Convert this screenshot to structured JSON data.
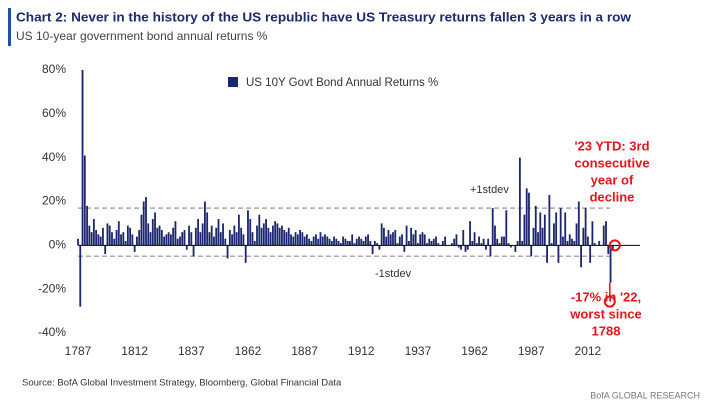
{
  "chart_data": {
    "type": "bar",
    "title": "Chart 2: Never in the history of the US republic have US Treasury returns fallen 3 years in a row",
    "subtitle": "US 10-year government bond annual returns %",
    "series": [
      {
        "name": "US 10Y Govt Bond Annual Returns %",
        "color": "#1c2670"
      }
    ],
    "x": [
      1787,
      1788,
      1789,
      1790,
      1791,
      1792,
      1793,
      1794,
      1795,
      1796,
      1797,
      1798,
      1799,
      1800,
      1801,
      1802,
      1803,
      1804,
      1805,
      1806,
      1807,
      1808,
      1809,
      1810,
      1811,
      1812,
      1813,
      1814,
      1815,
      1816,
      1817,
      1818,
      1819,
      1820,
      1821,
      1822,
      1823,
      1824,
      1825,
      1826,
      1827,
      1828,
      1829,
      1830,
      1831,
      1832,
      1833,
      1834,
      1835,
      1836,
      1837,
      1838,
      1839,
      1840,
      1841,
      1842,
      1843,
      1844,
      1845,
      1846,
      1847,
      1848,
      1849,
      1850,
      1851,
      1852,
      1853,
      1854,
      1855,
      1856,
      1857,
      1858,
      1859,
      1860,
      1861,
      1862,
      1863,
      1864,
      1865,
      1866,
      1867,
      1868,
      1869,
      1870,
      1871,
      1872,
      1873,
      1874,
      1875,
      1876,
      1877,
      1878,
      1879,
      1880,
      1881,
      1882,
      1883,
      1884,
      1885,
      1886,
      1887,
      1888,
      1889,
      1890,
      1891,
      1892,
      1893,
      1894,
      1895,
      1896,
      1897,
      1898,
      1899,
      1900,
      1901,
      1902,
      1903,
      1904,
      1905,
      1906,
      1907,
      1908,
      1909,
      1910,
      1911,
      1912,
      1913,
      1914,
      1915,
      1916,
      1917,
      1918,
      1919,
      1920,
      1921,
      1922,
      1923,
      1924,
      1925,
      1926,
      1927,
      1928,
      1929,
      1930,
      1931,
      1932,
      1933,
      1934,
      1935,
      1936,
      1937,
      1938,
      1939,
      1940,
      1941,
      1942,
      1943,
      1944,
      1945,
      1946,
      1947,
      1948,
      1949,
      1950,
      1951,
      1952,
      1953,
      1954,
      1955,
      1956,
      1957,
      1958,
      1959,
      1960,
      1961,
      1962,
      1963,
      1964,
      1965,
      1966,
      1967,
      1968,
      1969,
      1970,
      1971,
      1972,
      1973,
      1974,
      1975,
      1976,
      1977,
      1978,
      1979,
      1980,
      1981,
      1982,
      1983,
      1984,
      1985,
      1986,
      1987,
      1988,
      1989,
      1990,
      1991,
      1992,
      1993,
      1994,
      1995,
      1996,
      1997,
      1998,
      1999,
      2000,
      2001,
      2002,
      2003,
      2004,
      2005,
      2006,
      2007,
      2008,
      2009,
      2010,
      2011,
      2012,
      2013,
      2014,
      2015,
      2016,
      2017,
      2018,
      2019,
      2020,
      2021,
      2022,
      2023
    ],
    "values": [
      3,
      -28,
      80,
      41,
      18,
      9,
      6,
      12,
      7,
      5,
      4,
      8,
      -4,
      10,
      9,
      6,
      3,
      7,
      11,
      5,
      6,
      2,
      9,
      8,
      5,
      -3,
      4,
      7,
      14,
      20,
      22,
      10,
      6,
      12,
      15,
      8,
      9,
      7,
      4,
      5,
      6,
      5,
      8,
      11,
      3,
      4,
      6,
      7,
      -2,
      9,
      6,
      -5,
      8,
      12,
      6,
      10,
      20,
      15,
      6,
      9,
      4,
      8,
      12,
      6,
      10,
      3,
      -6,
      7,
      5,
      9,
      6,
      14,
      8,
      5,
      -8,
      16,
      12,
      6,
      2,
      9,
      14,
      8,
      10,
      12,
      8,
      6,
      9,
      11,
      10,
      8,
      9,
      7,
      6,
      8,
      5,
      4,
      6,
      5,
      7,
      6,
      4,
      5,
      3,
      2,
      4,
      5,
      3,
      6,
      4,
      5,
      4,
      3,
      2,
      4,
      3,
      2,
      1,
      4,
      3,
      2,
      2,
      5,
      1,
      3,
      4,
      3,
      2,
      4,
      5,
      2,
      -4,
      2,
      1,
      -2,
      10,
      8,
      4,
      7,
      5,
      6,
      7,
      1,
      4,
      5,
      -3,
      9,
      2,
      8,
      5,
      7,
      1,
      5,
      6,
      5,
      1,
      3,
      2,
      3,
      4,
      1,
      0,
      2,
      4,
      0,
      0,
      1,
      3,
      5,
      -1,
      -2,
      7,
      -3,
      -2,
      11,
      2,
      6,
      1,
      4,
      1,
      3,
      -2,
      3,
      -5,
      17,
      9,
      3,
      1,
      4,
      4,
      16,
      1,
      -1,
      0,
      -3,
      2,
      40,
      2,
      14,
      26,
      24,
      -5,
      8,
      18,
      6,
      15,
      8,
      14,
      -8,
      23,
      1,
      10,
      15,
      -8,
      17,
      4,
      15,
      2,
      5,
      3,
      2,
      10,
      20,
      -10,
      8,
      17,
      4,
      -8,
      11,
      1,
      0,
      2,
      0,
      9,
      11,
      -4,
      -17,
      -2
    ],
    "xlim": [
      1787,
      2035
    ],
    "xticks": [
      1787,
      1812,
      1837,
      1862,
      1887,
      1912,
      1937,
      1962,
      1987,
      2012
    ],
    "ylim": [
      -40,
      80
    ],
    "yticks": [
      {
        "value": -40,
        "label": "-40%"
      },
      {
        "value": -20,
        "label": "-20%"
      },
      {
        "value": 0,
        "label": "0%"
      },
      {
        "value": 20,
        "label": "20%"
      },
      {
        "value": 40,
        "label": "40%"
      },
      {
        "value": 60,
        "label": "60%"
      },
      {
        "value": 80,
        "label": "80%"
      }
    ],
    "reference_lines": [
      {
        "value": 17,
        "label": "+1stdev"
      },
      {
        "value": -5,
        "label": "-1stdev"
      }
    ],
    "annotations": [
      [
        "'23 YTD: 3rd",
        "consecutive",
        "year of",
        "decline"
      ],
      [
        "-17% in '22,",
        "worst since",
        "1788"
      ]
    ],
    "source": "Source: BofA Global Investment Strategy, Bloomberg, Global Financial Data",
    "brand": "BofA GLOBAL RESEARCH"
  }
}
